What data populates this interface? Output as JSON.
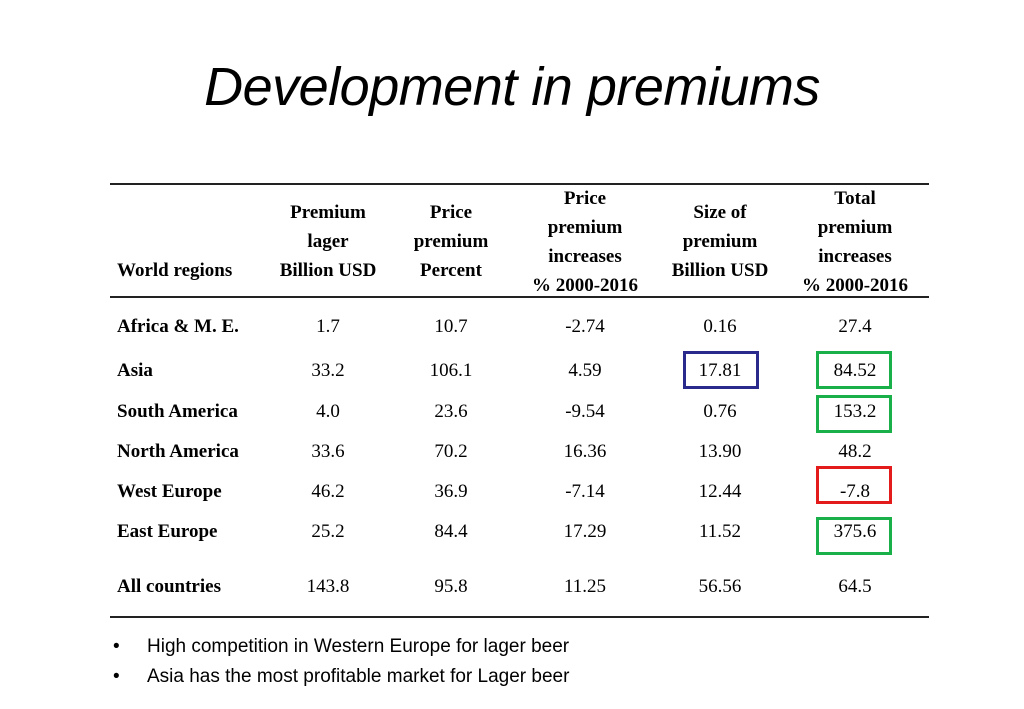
{
  "title": "Development in premiums",
  "table": {
    "headers": [
      "World regions",
      "Premium\nlager\nBillion USD",
      "Price\npremium\nPercent",
      "Price\npremium\nincreases\n% 2000-2016",
      "Size of\npremium\nBillion USD",
      "Total\npremium\nincreases\n% 2000-2016"
    ],
    "rows": [
      [
        "Africa & M. E.",
        "1.7",
        "10.7",
        "-2.74",
        "0.16",
        "27.4"
      ],
      [
        "Asia",
        "33.2",
        "106.1",
        "4.59",
        "17.81",
        "84.52"
      ],
      [
        "South America",
        "4.0",
        "23.6",
        "-9.54",
        "0.76",
        "153.2"
      ],
      [
        "North America",
        "33.6",
        "70.2",
        "16.36",
        "13.90",
        "48.2"
      ],
      [
        "West Europe",
        "46.2",
        "36.9",
        "-7.14",
        "12.44",
        "-7.8"
      ],
      [
        "East Europe",
        "25.2",
        "84.4",
        "17.29",
        "11.52",
        "375.6"
      ],
      [
        "All countries",
        "143.8",
        "95.8",
        "11.25",
        "56.56",
        "64.5"
      ]
    ],
    "highlight_colors": {
      "blue": "#2a2a8c",
      "green": "#19b04a",
      "red": "#e31b1b"
    }
  },
  "bullets": [
    {
      "mark": "•",
      "text": "High competition in Western Europe for lager beer"
    },
    {
      "mark": "•",
      "text": "Asia has the most profitable market for Lager beer"
    }
  ]
}
